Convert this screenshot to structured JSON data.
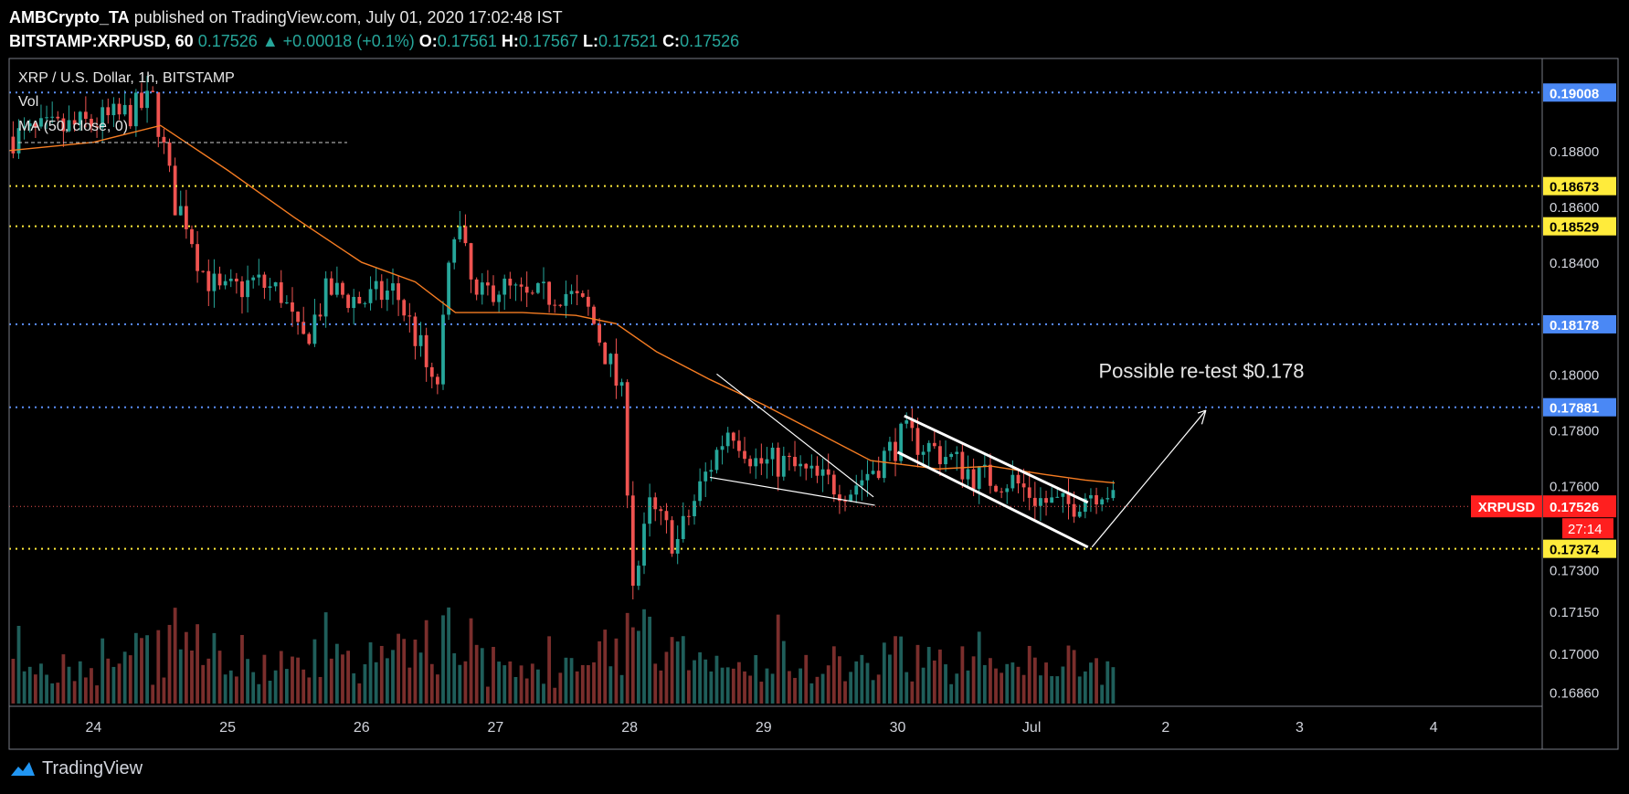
{
  "header": {
    "author": "AMBCrypto_TA",
    "published": "published on TradingView.com, July 01, 2020 17:02:48 IST",
    "symbol": "BITSTAMP:XRPUSD, 60",
    "last": "0.17526",
    "change": "+0.00018 (+0.1%)",
    "o_label": "O:",
    "o": "0.17561",
    "h_label": "H:",
    "h": "0.17567",
    "l_label": "L:",
    "l": "0.17521",
    "c_label": "C:",
    "c": "0.17526"
  },
  "legend": {
    "title": "XRP / U.S. Dollar, 1h, BITSTAMP",
    "vol": "Vol",
    "ma": "MA (50, close, 0)"
  },
  "footer": {
    "brand": "TradingView"
  },
  "chart_data": {
    "type": "candlestick",
    "title": "XRP / U.S. Dollar, 1h, BITSTAMP",
    "ylim": [
      0.1681,
      0.1913
    ],
    "y_ticks": [
      0.188,
      0.186,
      0.184,
      0.18,
      0.178,
      0.176,
      0.173,
      0.1715,
      0.17,
      0.1686
    ],
    "x_tick_labels": [
      "24",
      "25",
      "26",
      "27",
      "28",
      "29",
      "30",
      "Jul",
      "2",
      "3",
      "4"
    ],
    "x_tick_days": [
      24,
      25,
      26,
      27,
      28,
      29,
      30,
      31,
      32,
      33,
      34
    ],
    "x_start_day": 23.37,
    "x_end_day": 34.81,
    "horizontal_levels": [
      {
        "value": 0.19008,
        "label": "0.19008",
        "style": "blue-dotted"
      },
      {
        "value": 0.18673,
        "label": "0.18673",
        "style": "yellow-dotted"
      },
      {
        "value": 0.18529,
        "label": "0.18529",
        "style": "yellow-dotted"
      },
      {
        "value": 0.18178,
        "label": "0.18178",
        "style": "blue-dotted"
      },
      {
        "value": 0.17881,
        "label": "0.17881",
        "style": "blue-dotted"
      },
      {
        "value": 0.17374,
        "label": "0.17374",
        "style": "yellow-dotted"
      }
    ],
    "last_price": {
      "symbol": "XRPUSD",
      "value": 0.17526,
      "label": "0.17526",
      "countdown": "27:14"
    },
    "annotation": "Possible re-test $0.178",
    "close_path": [
      [
        23.4,
        0.1885
      ],
      [
        23.8,
        0.1888
      ],
      [
        24.2,
        0.1892
      ],
      [
        24.45,
        0.1898
      ],
      [
        24.6,
        0.1862
      ],
      [
        24.7,
        0.1855
      ],
      [
        24.8,
        0.1838
      ],
      [
        24.95,
        0.1828
      ],
      [
        25.2,
        0.1833
      ],
      [
        25.4,
        0.1829
      ],
      [
        25.55,
        0.181
      ],
      [
        25.75,
        0.183
      ],
      [
        26.0,
        0.1826
      ],
      [
        26.25,
        0.183
      ],
      [
        26.45,
        0.1808
      ],
      [
        26.55,
        0.179
      ],
      [
        26.7,
        0.1858
      ],
      [
        26.85,
        0.1825
      ],
      [
        27.0,
        0.1832
      ],
      [
        27.25,
        0.1826
      ],
      [
        27.5,
        0.183
      ],
      [
        27.7,
        0.1822
      ],
      [
        27.85,
        0.1804
      ],
      [
        27.95,
        0.179
      ],
      [
        28.03,
        0.1723
      ],
      [
        28.15,
        0.1752
      ],
      [
        28.35,
        0.1739
      ],
      [
        28.55,
        0.1762
      ],
      [
        28.75,
        0.1782
      ],
      [
        28.95,
        0.1768
      ],
      [
        29.15,
        0.1768
      ],
      [
        29.4,
        0.1762
      ],
      [
        29.65,
        0.1759
      ],
      [
        29.85,
        0.1768
      ],
      [
        30.05,
        0.1778
      ],
      [
        30.35,
        0.1771
      ],
      [
        30.6,
        0.1763
      ],
      [
        30.85,
        0.1762
      ],
      [
        31.05,
        0.1755
      ],
      [
        31.25,
        0.1752
      ],
      [
        31.4,
        0.1757
      ],
      [
        31.55,
        0.176
      ],
      [
        31.62,
        0.17526
      ]
    ],
    "ma_path": [
      [
        23.37,
        0.188
      ],
      [
        24.0,
        0.1883
      ],
      [
        24.5,
        0.1889
      ],
      [
        25.0,
        0.1873
      ],
      [
        25.5,
        0.1856
      ],
      [
        26.0,
        0.184
      ],
      [
        26.4,
        0.1833
      ],
      [
        26.7,
        0.1822
      ],
      [
        27.2,
        0.1822
      ],
      [
        27.6,
        0.1821
      ],
      [
        27.9,
        0.1818
      ],
      [
        28.2,
        0.1808
      ],
      [
        28.6,
        0.1798
      ],
      [
        29.0,
        0.1789
      ],
      [
        29.4,
        0.1779
      ],
      [
        29.8,
        0.1769
      ],
      [
        30.3,
        0.1766
      ],
      [
        30.7,
        0.1767
      ],
      [
        31.1,
        0.1764
      ],
      [
        31.4,
        0.1762
      ],
      [
        31.62,
        0.1761
      ]
    ]
  },
  "colors": {
    "up": "#26a69a",
    "down": "#ef5350",
    "ma": "#f57c22",
    "level_blue": "#5b8ff9",
    "level_yellow": "#ffeb3b",
    "grid_text": "#d1d4dc"
  }
}
